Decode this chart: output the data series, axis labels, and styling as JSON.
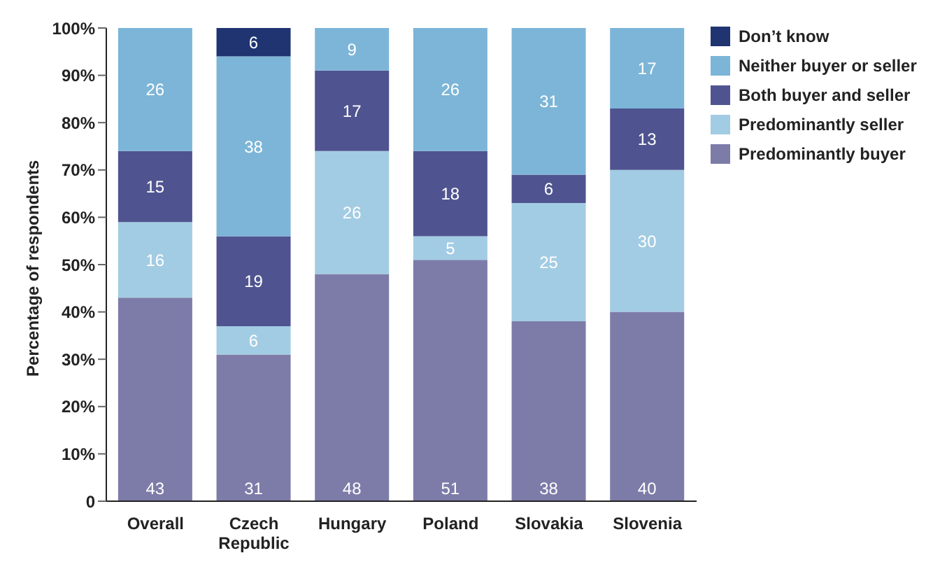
{
  "chart_data": {
    "type": "bar",
    "stacked": true,
    "ylabel": "Percentage of respondents",
    "categories": [
      "Overall",
      "Czech Republic",
      "Hungary",
      "Poland",
      "Slovakia",
      "Slovenia"
    ],
    "series": [
      {
        "name": "Predominantly buyer",
        "color": "#7d7ba8",
        "values": [
          43,
          31,
          48,
          51,
          38,
          40
        ]
      },
      {
        "name": "Predominantly seller",
        "color": "#a2cce3",
        "values": [
          16,
          6,
          26,
          5,
          25,
          30
        ]
      },
      {
        "name": "Both buyer and seller",
        "color": "#4f5490",
        "values": [
          15,
          19,
          17,
          18,
          6,
          13
        ]
      },
      {
        "name": "Neither buyer or seller",
        "color": "#7cb5d7",
        "values": [
          26,
          38,
          9,
          26,
          31,
          17
        ]
      },
      {
        "name": "Don’t know",
        "color": "#1f3471",
        "values": [
          null,
          6,
          null,
          null,
          null,
          null
        ]
      }
    ],
    "ylim": [
      0,
      100
    ],
    "yticks": [
      0,
      {
        "value": 10,
        "label": "10%"
      },
      {
        "value": 20,
        "label": "20%"
      },
      {
        "value": 30,
        "label": "30%"
      },
      {
        "value": 40,
        "label": "40%"
      },
      {
        "value": 50,
        "label": "50%"
      },
      {
        "value": 60,
        "label": "60%"
      },
      {
        "value": 70,
        "label": "70%"
      },
      {
        "value": 80,
        "label": "80%"
      },
      {
        "value": 90,
        "label": "90%"
      },
      {
        "value": 100,
        "label": "100%"
      }
    ],
    "data_labels": true,
    "legend": "top right",
    "grid": false
  }
}
